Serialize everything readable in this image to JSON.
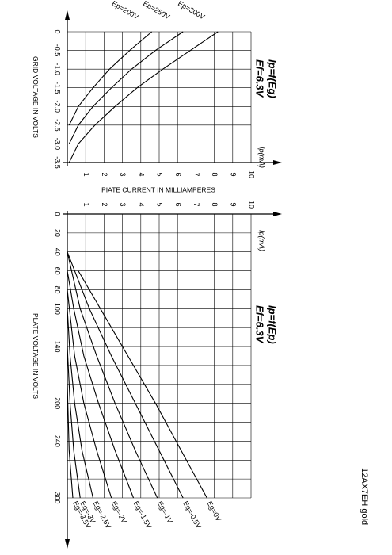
{
  "label": "12AX7EH gold",
  "chart_data": [
    {
      "type": "line",
      "title": "Ip=f(Eg)",
      "subtitle": "Ef=6.3V",
      "xunit": "Ip(mA)",
      "xlabel": "PIATE CURRENT IN MILLIAMPERES",
      "ylabel": "GRID VOLTAGE IN VOLTS",
      "xlim": [
        0,
        10
      ],
      "xticks": [
        1,
        2,
        3,
        4,
        5,
        6,
        7,
        8,
        9,
        10
      ],
      "ylim": [
        -3.5,
        0
      ],
      "yticks": [
        -3.5,
        {
          "value": -3,
          "label": "-3.0"
        },
        -2.5,
        {
          "value": -2,
          "label": "-2.0"
        },
        -1.5,
        {
          "value": -1,
          "label": "-1.0"
        },
        -0.5,
        0
      ],
      "grid": true,
      "series": [
        {
          "name": "Ep=200V",
          "color": "#000000",
          "x": [
            0.1,
            0.6,
            1.4,
            2.3,
            3.4,
            4.6
          ],
          "values": [
            -2.5,
            -2,
            -1.5,
            -1,
            -0.5,
            0
          ]
        },
        {
          "name": "Ep=250V",
          "color": "#000000",
          "x": [
            0.1,
            0.6,
            1.4,
            2.4,
            3.5,
            4.8,
            6.3
          ],
          "values": [
            -3,
            -2.5,
            -2,
            -1.5,
            -1,
            -0.5,
            0
          ]
        },
        {
          "name": "Ep=300V",
          "color": "#000000",
          "x": [
            0.1,
            0.6,
            1.5,
            2.6,
            3.8,
            5.2,
            6.7,
            8.2
          ],
          "values": [
            -3.5,
            -3,
            -2.5,
            -2,
            -1.5,
            -1,
            -0.5,
            0
          ]
        }
      ]
    },
    {
      "type": "line",
      "title": "Ip=f(Ep)",
      "subtitle": "Ef=6.3V",
      "xunit": "Ip(mA)",
      "ylabel": "PLATE VOLTAGE IN VOLTS",
      "xlim": [
        0,
        10
      ],
      "xticks": [
        1,
        2,
        3,
        4,
        5,
        6,
        7,
        8,
        9,
        10
      ],
      "ylim": [
        0,
        300
      ],
      "y_inverted": true,
      "yticks": [
        0,
        20,
        40,
        60,
        80,
        100,
        140,
        200,
        240,
        300
      ],
      "yminor": [
        120,
        160,
        180,
        220,
        260,
        280
      ],
      "grid": true,
      "series": [
        {
          "name": "Eg=0V",
          "color": "#000000",
          "x": [
            0.6,
            1.8,
            3.3,
            4.8,
            6.2,
            7.6
          ],
          "values": [
            60,
            100,
            150,
            200,
            250,
            300
          ]
        },
        {
          "name": "Eg=-0.5V",
          "color": "#000000",
          "x": [
            0,
            1.2,
            2.4,
            3.7,
            5.0,
            6.3
          ],
          "values": [
            40,
            100,
            150,
            200,
            250,
            300
          ]
        },
        {
          "name": "Eg=-1V",
          "color": "#000000",
          "x": [
            0,
            0.7,
            1.6,
            2.6,
            3.7,
            4.9
          ],
          "values": [
            40,
            100,
            150,
            200,
            250,
            300
          ]
        },
        {
          "name": "Eg=-1.5V",
          "color": "#000000",
          "x": [
            0,
            0.35,
            0.9,
            1.7,
            2.6,
            3.6
          ],
          "values": [
            60,
            100,
            150,
            200,
            250,
            300
          ]
        },
        {
          "name": "Eg=-2V",
          "color": "#000000",
          "x": [
            0,
            0.4,
            0.9,
            1.6,
            2.4
          ],
          "values": [
            80,
            150,
            200,
            250,
            300
          ]
        },
        {
          "name": "Eg=-2.5V",
          "color": "#000000",
          "x": [
            0,
            0.15,
            0.4,
            0.8,
            1.4
          ],
          "values": [
            100,
            150,
            200,
            250,
            300
          ]
        },
        {
          "name": "Eg=-3V",
          "color": "#000000",
          "x": [
            0,
            0.15,
            0.35,
            0.7
          ],
          "values": [
            140,
            200,
            250,
            300
          ]
        },
        {
          "name": "Eg=-3.5V",
          "color": "#000000",
          "x": [
            0,
            0.1,
            0.3
          ],
          "values": [
            180,
            250,
            300
          ]
        }
      ]
    }
  ]
}
